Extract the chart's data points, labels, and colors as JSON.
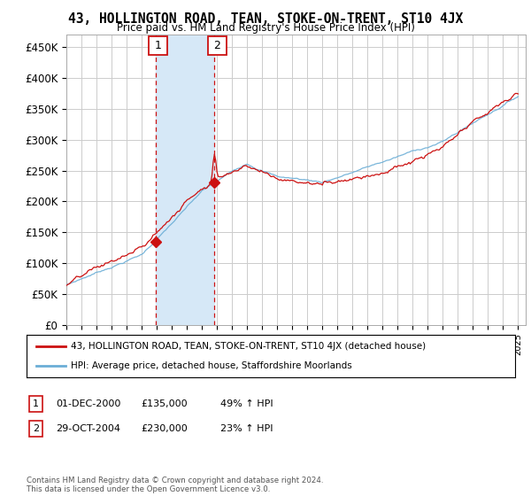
{
  "title": "43, HOLLINGTON ROAD, TEAN, STOKE-ON-TRENT, ST10 4JX",
  "subtitle": "Price paid vs. HM Land Registry's House Price Index (HPI)",
  "background_color": "#ffffff",
  "plot_bg_color": "#ffffff",
  "grid_color": "#cccccc",
  "ylim": [
    0,
    470000
  ],
  "yticks": [
    0,
    50000,
    100000,
    150000,
    200000,
    250000,
    300000,
    350000,
    400000,
    450000
  ],
  "ytick_labels": [
    "£0",
    "£50K",
    "£100K",
    "£150K",
    "£200K",
    "£250K",
    "£300K",
    "£350K",
    "£400K",
    "£450K"
  ],
  "xlim_start": 1995.0,
  "xlim_end": 2025.5,
  "sale1_date_x": 2000.92,
  "sale1_price": 135000,
  "sale2_date_x": 2004.83,
  "sale2_price": 230000,
  "legend_line1": "43, HOLLINGTON ROAD, TEAN, STOKE-ON-TRENT, ST10 4JX (detached house)",
  "legend_line2": "HPI: Average price, detached house, Staffordshire Moorlands",
  "table_row1": [
    "1",
    "01-DEC-2000",
    "£135,000",
    "49% ↑ HPI"
  ],
  "table_row2": [
    "2",
    "29-OCT-2004",
    "£230,000",
    "23% ↑ HPI"
  ],
  "footer": "Contains HM Land Registry data © Crown copyright and database right 2024.\nThis data is licensed under the Open Government Licence v3.0.",
  "hpi_color": "#6baed6",
  "price_color": "#cc1111",
  "shade_color": "#d6e8f7"
}
